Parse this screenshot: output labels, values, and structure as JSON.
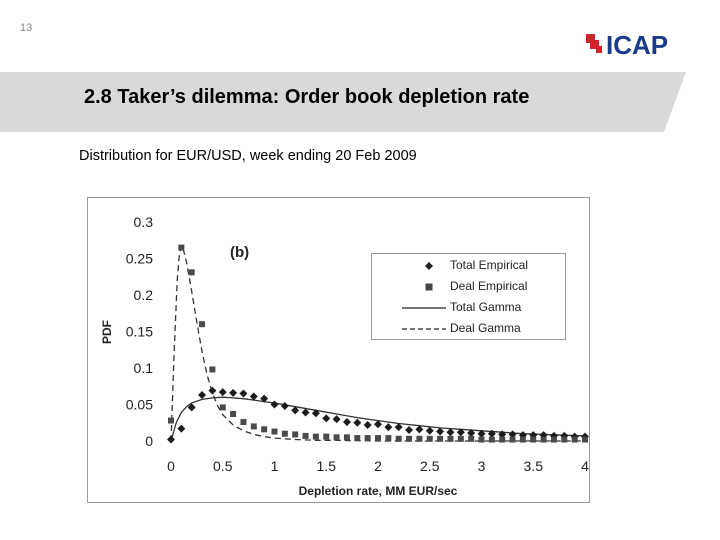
{
  "slide": {
    "number": "13",
    "title": "2.8 Taker’s dilemma: Order book depletion rate",
    "subtitle": "Distribution for EUR/USD, week ending 20 Feb 2009"
  },
  "logo": {
    "text": "ICAP",
    "colors": {
      "mark": "#d0232c",
      "text": "#1a3a8c"
    }
  },
  "colors": {
    "title_band": "#d9d9d9",
    "series": "#333333",
    "frame": "#9a9a9a"
  },
  "chart_data": {
    "type": "scatter",
    "annotation": "(b)",
    "xlabel": "Depletion rate, MM EUR/sec",
    "ylabel": "PDF",
    "xlim": [
      0,
      4
    ],
    "ylim": [
      0,
      0.3
    ],
    "xticks": [
      "0",
      "0.5",
      "1",
      "1.5",
      "2",
      "2.5",
      "3",
      "3.5",
      "4"
    ],
    "yticks": [
      "0",
      "0.05",
      "0.1",
      "0.15",
      "0.2",
      "0.25",
      "0.3"
    ],
    "grid": false,
    "legend_position": "top-right",
    "series": [
      {
        "name": "Total Empirical",
        "kind": "points",
        "marker": "diamond",
        "x": [
          0,
          0.1,
          0.2,
          0.3,
          0.4,
          0.5,
          0.6,
          0.7,
          0.8,
          0.9,
          1.0,
          1.1,
          1.2,
          1.3,
          1.4,
          1.5,
          1.6,
          1.7,
          1.8,
          1.9,
          2.0,
          2.1,
          2.2,
          2.3,
          2.4,
          2.5,
          2.6,
          2.7,
          2.8,
          2.9,
          3.0,
          3.1,
          3.2,
          3.3,
          3.4,
          3.5,
          3.6,
          3.7,
          3.8,
          3.9,
          4.0
        ],
        "y": [
          0.002,
          0.017,
          0.046,
          0.063,
          0.069,
          0.067,
          0.066,
          0.065,
          0.061,
          0.058,
          0.05,
          0.048,
          0.042,
          0.039,
          0.038,
          0.031,
          0.03,
          0.026,
          0.025,
          0.022,
          0.023,
          0.019,
          0.019,
          0.015,
          0.016,
          0.014,
          0.013,
          0.012,
          0.012,
          0.011,
          0.01,
          0.01,
          0.009,
          0.009,
          0.008,
          0.008,
          0.008,
          0.007,
          0.007,
          0.006,
          0.006
        ]
      },
      {
        "name": "Deal Empirical",
        "kind": "points",
        "marker": "square",
        "x": [
          0,
          0.1,
          0.2,
          0.3,
          0.4,
          0.5,
          0.6,
          0.7,
          0.8,
          0.9,
          1.0,
          1.1,
          1.2,
          1.3,
          1.4,
          1.5,
          1.6,
          1.7,
          1.8,
          1.9,
          2.0,
          2.1,
          2.2,
          2.3,
          2.4,
          2.5,
          2.6,
          2.7,
          2.8,
          2.9,
          3.0,
          3.1,
          3.2,
          3.3,
          3.4,
          3.5,
          3.6,
          3.7,
          3.8,
          3.9,
          4.0
        ],
        "y": [
          0.028,
          0.265,
          0.231,
          0.16,
          0.098,
          0.046,
          0.037,
          0.026,
          0.02,
          0.016,
          0.013,
          0.01,
          0.009,
          0.007,
          0.006,
          0.006,
          0.005,
          0.005,
          0.004,
          0.004,
          0.004,
          0.004,
          0.003,
          0.003,
          0.003,
          0.003,
          0.003,
          0.003,
          0.003,
          0.003,
          0.002,
          0.002,
          0.002,
          0.002,
          0.002,
          0.002,
          0.002,
          0.002,
          0.002,
          0.002,
          0.002
        ]
      },
      {
        "name": "Total Gamma",
        "kind": "line",
        "dash": "solid",
        "x": [
          0,
          0.05,
          0.1,
          0.15,
          0.2,
          0.3,
          0.4,
          0.5,
          0.6,
          0.7,
          0.8,
          0.9,
          1.0,
          1.2,
          1.4,
          1.6,
          1.8,
          2.0,
          2.2,
          2.4,
          2.6,
          2.8,
          3.0,
          3.2,
          3.4,
          3.6,
          3.8,
          4.0
        ],
        "y": [
          0.0,
          0.025,
          0.039,
          0.047,
          0.052,
          0.057,
          0.059,
          0.06,
          0.059,
          0.058,
          0.056,
          0.054,
          0.052,
          0.047,
          0.042,
          0.037,
          0.032,
          0.028,
          0.024,
          0.021,
          0.018,
          0.016,
          0.014,
          0.012,
          0.01,
          0.009,
          0.008,
          0.007
        ]
      },
      {
        "name": "Deal Gamma",
        "kind": "line",
        "dash": "dashed",
        "x": [
          0,
          0.03,
          0.06,
          0.08,
          0.1,
          0.12,
          0.15,
          0.2,
          0.25,
          0.3,
          0.35,
          0.4,
          0.45,
          0.5,
          0.6,
          0.7,
          0.8,
          0.9,
          1.0,
          1.2,
          1.4,
          1.6,
          2.0,
          2.5,
          3.0,
          3.5,
          4.0
        ],
        "y": [
          0.0,
          0.12,
          0.22,
          0.255,
          0.268,
          0.262,
          0.245,
          0.205,
          0.162,
          0.122,
          0.09,
          0.066,
          0.048,
          0.036,
          0.022,
          0.014,
          0.009,
          0.006,
          0.004,
          0.002,
          0.001,
          0.001,
          0.0,
          0.0,
          0.0,
          0.0,
          0.0
        ]
      }
    ]
  }
}
